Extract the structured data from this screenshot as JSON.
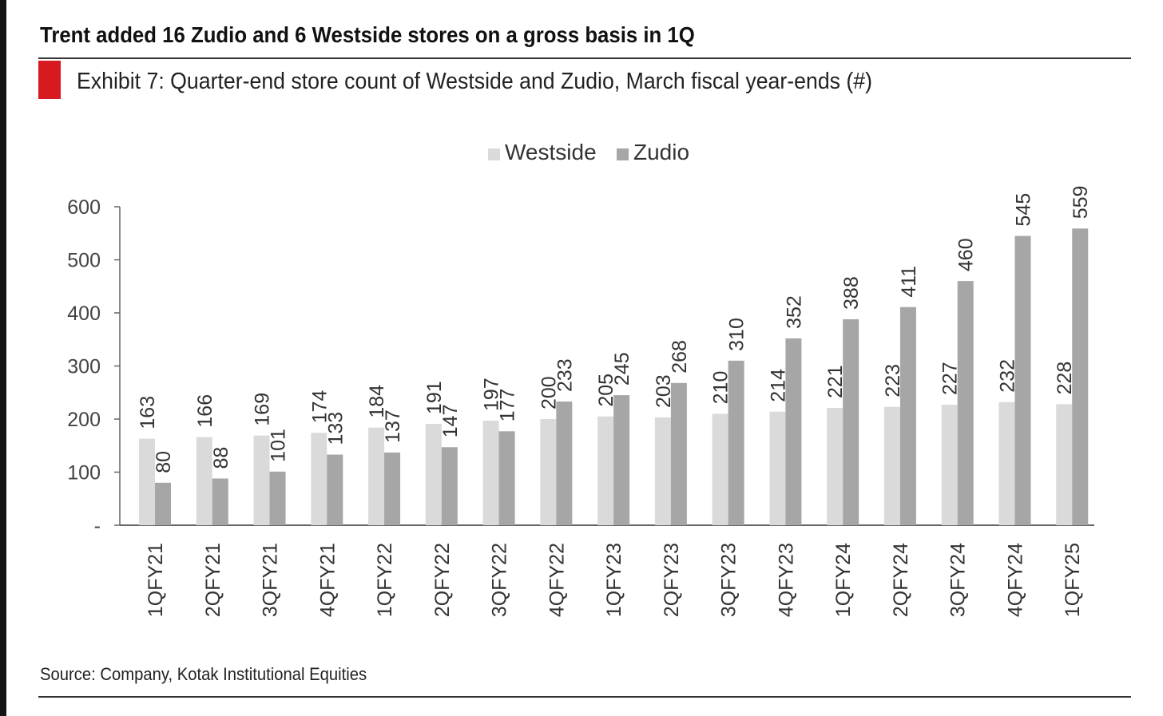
{
  "headline": "Trent added 16 Zudio and 6 Westside stores on a gross basis in 1Q",
  "exhibit_title": "Exhibit 7: Quarter-end store count of Westside and Zudio, March fiscal year-ends (#)",
  "source": "Source: Company, Kotak Institutional Equities",
  "colors": {
    "accent": "#d71920",
    "westside": "#dadada",
    "zudio": "#a6a6a6"
  },
  "chart_data": {
    "type": "bar",
    "categories": [
      "1QFY21",
      "2QFY21",
      "3QFY21",
      "4QFY21",
      "1QFY22",
      "2QFY22",
      "3QFY22",
      "4QFY22",
      "1QFY23",
      "2QFY23",
      "3QFY23",
      "4QFY23",
      "1QFY24",
      "2QFY24",
      "3QFY24",
      "4QFY24",
      "1QFY25"
    ],
    "series": [
      {
        "name": "Westside",
        "values": [
          163,
          166,
          169,
          174,
          184,
          191,
          197,
          200,
          205,
          203,
          210,
          214,
          221,
          223,
          227,
          232,
          228
        ]
      },
      {
        "name": "Zudio",
        "values": [
          80,
          88,
          101,
          133,
          137,
          147,
          177,
          233,
          245,
          268,
          310,
          352,
          388,
          411,
          460,
          545,
          559
        ]
      }
    ],
    "yticks": [
      "-",
      "100",
      "200",
      "300",
      "400",
      "500",
      "600"
    ],
    "ylim": [
      0,
      600
    ],
    "legend_position": "top-center",
    "grid": false,
    "data_labels": true
  }
}
